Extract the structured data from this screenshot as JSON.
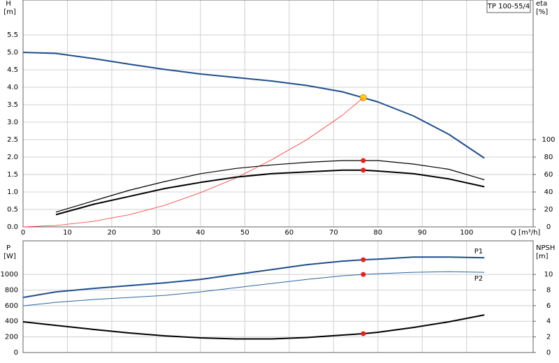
{
  "model": "TP 100-55/4",
  "chart_data": [
    {
      "type": "line",
      "ylabel": "H",
      "yunit": "[m]",
      "y2label": "eta",
      "y2unit": "[%]",
      "xlabel": "Q [m³/h]",
      "x": [
        0,
        7.4,
        16,
        24,
        32,
        40,
        48,
        56,
        64,
        72,
        76.7,
        80,
        88,
        96,
        104
      ],
      "xlim": [
        0,
        115
      ],
      "xticks": [
        0,
        10,
        20,
        30,
        40,
        50,
        60,
        70,
        80,
        90,
        100
      ],
      "ylim": [
        0,
        6.5
      ],
      "yticks": [
        {
          "value": 0,
          "label": "0.0"
        },
        {
          "value": 0.5,
          "label": "0.5"
        },
        {
          "value": 1,
          "label": "1.0"
        },
        {
          "value": 1.5,
          "label": "1.5"
        },
        {
          "value": 2,
          "label": "2.0"
        },
        {
          "value": 2.5,
          "label": "2.5"
        },
        {
          "value": 3,
          "label": "3.0"
        },
        {
          "value": 3.5,
          "label": "3.5"
        },
        {
          "value": 4,
          "label": "4.0"
        },
        {
          "value": 4.5,
          "label": "4.5"
        },
        {
          "value": 5,
          "label": "5.0"
        },
        {
          "value": 5.5,
          "label": "5.5"
        }
      ],
      "y2lim": [
        0,
        260
      ],
      "y2ticks": [
        0,
        20,
        40,
        60,
        80,
        100
      ],
      "grid": true,
      "duty_point_x": 76.7,
      "series": [
        {
          "color": "#1f4e8c",
          "line_width": 2,
          "marker_color": "#ffd21a",
          "values": [
            5.0,
            4.97,
            4.82,
            4.66,
            4.51,
            4.38,
            4.28,
            4.18,
            4.05,
            3.87,
            3.7,
            3.58,
            3.18,
            2.65,
            1.97
          ]
        },
        {
          "color": "#ff3030",
          "line_width": 0.8,
          "values": [
            0,
            0.04,
            0.16,
            0.35,
            0.62,
            0.98,
            1.4,
            1.92,
            2.5,
            3.2,
            3.7,
            null,
            null,
            null,
            null
          ]
        },
        {
          "color": "#000000",
          "line_width": 1.2,
          "axis": "y2",
          "marker_color": "#ee1c1c",
          "values": [
            null,
            17,
            30,
            42,
            52,
            61,
            67,
            71,
            74,
            76,
            76,
            76,
            72,
            66,
            54
          ]
        },
        {
          "color": "#000000",
          "line_width": 2,
          "axis": "y2",
          "marker_color": "#ee1c1c",
          "values": [
            null,
            14,
            26,
            35,
            44,
            51,
            57,
            61,
            63,
            65,
            65,
            64,
            61,
            55,
            46
          ]
        }
      ]
    },
    {
      "type": "line",
      "ylabel": "P",
      "yunit": "[W]",
      "y2label": "NPSH",
      "y2unit": "[m]",
      "x": [
        0,
        7.4,
        16,
        24,
        32,
        40,
        48,
        56,
        64,
        72,
        76.7,
        80,
        88,
        96,
        104
      ],
      "xlim": [
        0,
        115
      ],
      "ylim": [
        0,
        1430
      ],
      "yticks": [
        0,
        200,
        400,
        600,
        800,
        1000
      ],
      "y2lim": [
        0,
        14.3
      ],
      "y2ticks": [
        0,
        2,
        4,
        6,
        8,
        10
      ],
      "grid": true,
      "duty_point_x": 76.7,
      "series": [
        {
          "name": "P1",
          "color": "#1f4e8c",
          "line_width": 2,
          "marker_color": "#ee1c1c",
          "values": [
            705,
            777,
            821,
            857,
            893,
            937,
            1000,
            1062,
            1125,
            1170,
            1188,
            1196,
            1223,
            1223,
            1214
          ]
        },
        {
          "name": "P2",
          "color": "#2a64a8",
          "line_width": 1,
          "marker_color": "#ee1c1c",
          "values": [
            598,
            643,
            679,
            705,
            732,
            777,
            830,
            884,
            937,
            982,
            1000,
            1009,
            1027,
            1036,
            1027
          ]
        },
        {
          "color": "#000000",
          "line_width": 2,
          "axis": "y2",
          "marker_color": "#ee1c1c",
          "values": [
            3.93,
            3.48,
            2.95,
            2.5,
            2.14,
            1.88,
            1.74,
            1.74,
            1.92,
            2.23,
            2.41,
            2.59,
            3.21,
            3.93,
            4.82
          ]
        }
      ]
    }
  ]
}
